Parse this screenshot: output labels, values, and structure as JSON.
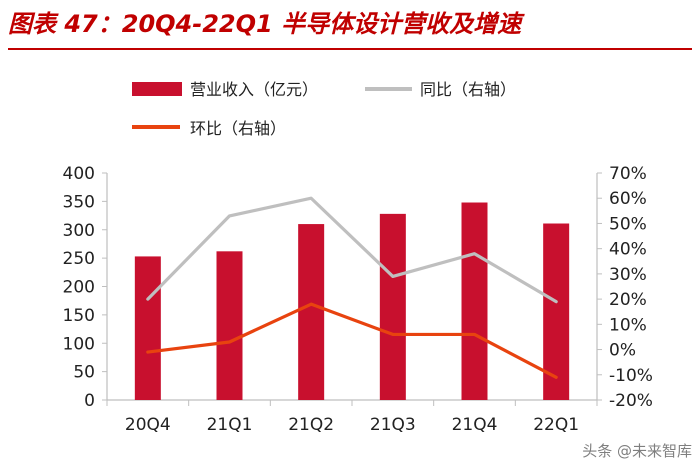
{
  "header": {
    "title": "图表 47：20Q4-22Q1 半导体设计营收及增速"
  },
  "watermark": {
    "text": "头条 @未来智库"
  },
  "chart_data": {
    "type": "bar+line",
    "title": "图表 47：20Q4-22Q1 半导体设计营收及增速",
    "categories": [
      "20Q4",
      "21Q1",
      "21Q2",
      "21Q3",
      "21Q4",
      "22Q1"
    ],
    "series": [
      {
        "name": "营业收入（亿元）",
        "kind": "bar",
        "axis": "left",
        "color": "#c8102e",
        "values": [
          253,
          262,
          310,
          328,
          348,
          311
        ]
      },
      {
        "name": "同比（右轴）",
        "kind": "line",
        "axis": "right",
        "color": "#bfbfbf",
        "values": [
          20,
          53,
          60,
          29,
          38,
          19
        ]
      },
      {
        "name": "环比（右轴）",
        "kind": "line",
        "axis": "right",
        "color": "#e8430f",
        "values": [
          -1,
          3,
          18,
          6,
          6,
          -11
        ]
      }
    ],
    "left_axis": {
      "min": 0,
      "max": 400,
      "step": 50,
      "ticks": [
        "0",
        "50",
        "100",
        "150",
        "200",
        "250",
        "300",
        "350",
        "400"
      ]
    },
    "right_axis": {
      "min": -20,
      "max": 70,
      "step": 10,
      "ticks": [
        "-20%",
        "-10%",
        "0%",
        "10%",
        "20%",
        "30%",
        "40%",
        "50%",
        "60%",
        "70%"
      ]
    },
    "legend_position": "top",
    "grid": false
  }
}
